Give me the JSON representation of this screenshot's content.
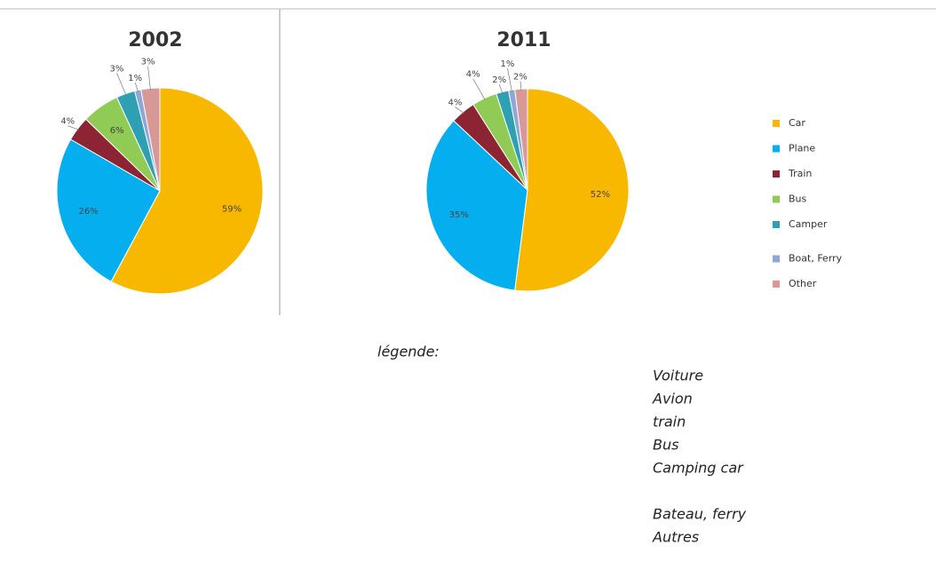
{
  "chart_data": [
    {
      "type": "pie",
      "title": "2002",
      "categories": [
        "Car",
        "Plane",
        "Train",
        "Bus",
        "Camper",
        "Boat, Ferry",
        "Other"
      ],
      "values": [
        59,
        26,
        4,
        6,
        3,
        1,
        3
      ],
      "value_labels": [
        "59%",
        "26%",
        "4%",
        "6%",
        "3%",
        "1%",
        "3%"
      ],
      "colors": [
        "#f9b800",
        "#05aeee",
        "#8c2433",
        "#8fcb55",
        "#2f9fb2",
        "#8ea7d6",
        "#d89896"
      ]
    },
    {
      "type": "pie",
      "title": "2011",
      "categories": [
        "Car",
        "Plane",
        "Train",
        "Bus",
        "Camper",
        "Boat, Ferry",
        "Other"
      ],
      "values": [
        52,
        35,
        4,
        4,
        2,
        1,
        2
      ],
      "value_labels": [
        "52%",
        "35%",
        "4%",
        "4%",
        "2%",
        "1%",
        "2%"
      ],
      "colors": [
        "#f9b800",
        "#05aeee",
        "#8c2433",
        "#8fcb55",
        "#2f9fb2",
        "#8ea7d6",
        "#d89896"
      ],
      "legend": "right"
    }
  ],
  "notes": {
    "heading": "légende:",
    "items": [
      "Voiture",
      "Avion",
      "train",
      "Bus",
      "Camping car",
      "Bateau, ferry",
      "Autres"
    ]
  }
}
